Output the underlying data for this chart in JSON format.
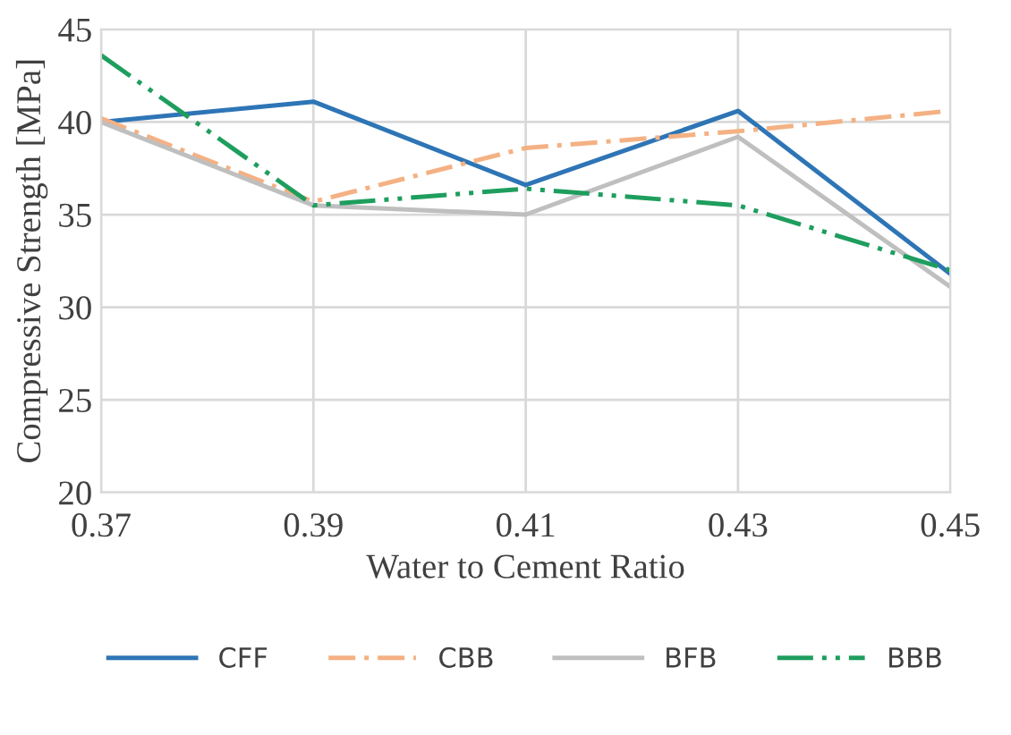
{
  "chart_data": {
    "type": "line",
    "xlabel": "Water to Cement Ratio",
    "ylabel": "Compressive Strength [MPa]",
    "x": [
      0.37,
      0.39,
      0.41,
      0.43,
      0.45
    ],
    "series": [
      {
        "name": "CFF",
        "color": "#2e75b6",
        "values": [
          40,
          41.1,
          36.6,
          40.6,
          31.8
        ],
        "line_style": "solid"
      },
      {
        "name": "CBB",
        "color": "#f4b183",
        "values": [
          40.2,
          35.7,
          38.6,
          39.5,
          40.6
        ],
        "line_style": "dashdot"
      },
      {
        "name": "BFB",
        "color": "#bfbfbf",
        "values": [
          40,
          35.5,
          35,
          39.2,
          31.1
        ],
        "line_style": "solid"
      },
      {
        "name": "BBB",
        "color": "#1e9e5e",
        "values": [
          43.6,
          35.5,
          36.4,
          35.5,
          32
        ],
        "line_style": "dashdotdot"
      }
    ],
    "xlim": [
      0.37,
      0.45
    ],
    "xticks": [
      {
        "value": 0.37,
        "label": "0.37"
      },
      {
        "value": 0.39,
        "label": "0.39"
      },
      {
        "value": 0.41,
        "label": "0.41"
      },
      {
        "value": 0.43,
        "label": "0.43"
      },
      {
        "value": 0.45,
        "label": "0.45"
      }
    ],
    "ylim": [
      20,
      45
    ],
    "yticks": [
      20,
      25,
      30,
      35,
      40,
      45
    ],
    "grid": true,
    "legend": "bottom",
    "marker": "none"
  }
}
